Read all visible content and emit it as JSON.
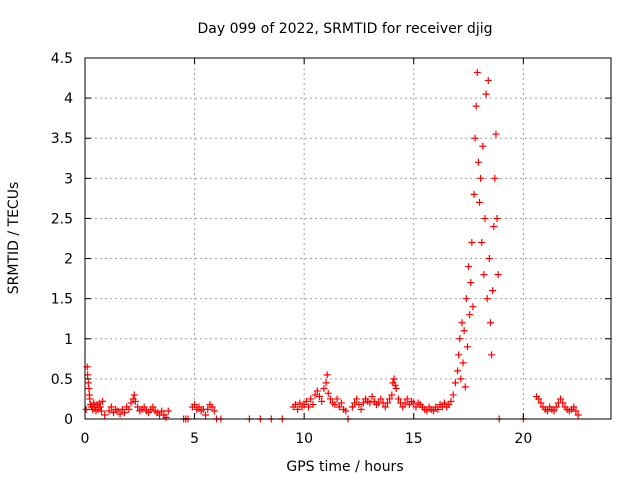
{
  "chart_data": {
    "type": "scatter",
    "title": "Day 099 of 2022, SRMTID for receiver djig",
    "xlabel": "GPS time / hours",
    "ylabel": "SRMTID / TECUs",
    "xlim": [
      0,
      24
    ],
    "ylim": [
      0,
      4.5
    ],
    "x_ticks": [
      0,
      5,
      10,
      15,
      20
    ],
    "x_tick_labels": [
      "0",
      "5",
      "10",
      "15",
      "20"
    ],
    "y_ticks": [
      0,
      0.5,
      1,
      1.5,
      2,
      2.5,
      3,
      3.5,
      4,
      4.5
    ],
    "y_tick_labels": [
      "0",
      "0.5",
      "1",
      "1.5",
      "2",
      "2.5",
      "3",
      "3.5",
      "4",
      "4.5"
    ],
    "grid": true,
    "marker": "+",
    "series": [
      {
        "name": "SRMTID",
        "color": "#ff0000",
        "points": [
          [
            0.05,
            0.12
          ],
          [
            0.1,
            0.65
          ],
          [
            0.12,
            0.55
          ],
          [
            0.15,
            0.45
          ],
          [
            0.18,
            0.38
          ],
          [
            0.2,
            0.3
          ],
          [
            0.22,
            0.25
          ],
          [
            0.25,
            0.18
          ],
          [
            0.3,
            0.15
          ],
          [
            0.35,
            0.12
          ],
          [
            0.4,
            0.2
          ],
          [
            0.45,
            0.15
          ],
          [
            0.5,
            0.1
          ],
          [
            0.55,
            0.18
          ],
          [
            0.6,
            0.12
          ],
          [
            0.65,
            0.2
          ],
          [
            0.7,
            0.15
          ],
          [
            0.75,
            0.1
          ],
          [
            0.8,
            0.22
          ],
          [
            0.9,
            0.05
          ],
          [
            1.1,
            0.1
          ],
          [
            1.2,
            0.15
          ],
          [
            1.3,
            0.08
          ],
          [
            1.4,
            0.12
          ],
          [
            1.5,
            0.1
          ],
          [
            1.6,
            0.06
          ],
          [
            1.7,
            0.12
          ],
          [
            1.8,
            0.08
          ],
          [
            1.9,
            0.15
          ],
          [
            2.0,
            0.12
          ],
          [
            2.1,
            0.2
          ],
          [
            2.2,
            0.25
          ],
          [
            2.25,
            0.3
          ],
          [
            2.3,
            0.22
          ],
          [
            2.4,
            0.15
          ],
          [
            2.5,
            0.1
          ],
          [
            2.6,
            0.12
          ],
          [
            2.7,
            0.15
          ],
          [
            2.8,
            0.1
          ],
          [
            2.9,
            0.08
          ],
          [
            3.0,
            0.12
          ],
          [
            3.1,
            0.15
          ],
          [
            3.2,
            0.1
          ],
          [
            3.3,
            0.08
          ],
          [
            3.4,
            0.05
          ],
          [
            3.5,
            0.1
          ],
          [
            3.6,
            0.05
          ],
          [
            3.7,
            0.02
          ],
          [
            3.8,
            0.1
          ],
          [
            4.5,
            0
          ],
          [
            4.6,
            0
          ],
          [
            4.7,
            0
          ],
          [
            4.9,
            0.15
          ],
          [
            5.0,
            0.18
          ],
          [
            5.1,
            0.12
          ],
          [
            5.2,
            0.15
          ],
          [
            5.3,
            0.1
          ],
          [
            5.4,
            0.12
          ],
          [
            5.5,
            0.05
          ],
          [
            5.6,
            0.12
          ],
          [
            5.7,
            0.18
          ],
          [
            5.8,
            0.15
          ],
          [
            5.9,
            0.1
          ],
          [
            6.0,
            0
          ],
          [
            6.2,
            0
          ],
          [
            7.5,
            0
          ],
          [
            8.0,
            0
          ],
          [
            8.5,
            0
          ],
          [
            9.0,
            0
          ],
          [
            9.5,
            0.15
          ],
          [
            9.6,
            0.18
          ],
          [
            9.7,
            0.12
          ],
          [
            9.8,
            0.2
          ],
          [
            9.9,
            0.15
          ],
          [
            10.0,
            0.18
          ],
          [
            10.1,
            0.22
          ],
          [
            10.2,
            0.15
          ],
          [
            10.3,
            0.25
          ],
          [
            10.4,
            0.18
          ],
          [
            10.5,
            0.3
          ],
          [
            10.6,
            0.35
          ],
          [
            10.7,
            0.28
          ],
          [
            10.8,
            0.22
          ],
          [
            10.9,
            0.38
          ],
          [
            11.0,
            0.45
          ],
          [
            11.05,
            0.55
          ],
          [
            11.1,
            0.32
          ],
          [
            11.2,
            0.25
          ],
          [
            11.3,
            0.2
          ],
          [
            11.4,
            0.18
          ],
          [
            11.5,
            0.25
          ],
          [
            11.6,
            0.15
          ],
          [
            11.7,
            0.2
          ],
          [
            11.8,
            0.12
          ],
          [
            11.9,
            0.1
          ],
          [
            12.0,
            0
          ],
          [
            12.2,
            0.15
          ],
          [
            12.3,
            0.2
          ],
          [
            12.4,
            0.25
          ],
          [
            12.5,
            0.18
          ],
          [
            12.6,
            0.12
          ],
          [
            12.7,
            0.2
          ],
          [
            12.8,
            0.25
          ],
          [
            12.9,
            0.22
          ],
          [
            13.0,
            0.2
          ],
          [
            13.1,
            0.28
          ],
          [
            13.2,
            0.22
          ],
          [
            13.3,
            0.18
          ],
          [
            13.4,
            0.2
          ],
          [
            13.5,
            0.25
          ],
          [
            13.6,
            0.2
          ],
          [
            13.7,
            0.15
          ],
          [
            13.8,
            0.2
          ],
          [
            13.9,
            0.25
          ],
          [
            14.0,
            0.3
          ],
          [
            14.05,
            0.45
          ],
          [
            14.1,
            0.5
          ],
          [
            14.15,
            0.42
          ],
          [
            14.2,
            0.38
          ],
          [
            14.3,
            0.25
          ],
          [
            14.4,
            0.2
          ],
          [
            14.5,
            0.15
          ],
          [
            14.6,
            0.2
          ],
          [
            14.7,
            0.25
          ],
          [
            14.8,
            0.18
          ],
          [
            14.9,
            0.22
          ],
          [
            15.0,
            0.2
          ],
          [
            15.1,
            0.15
          ],
          [
            15.2,
            0.2
          ],
          [
            15.3,
            0.18
          ],
          [
            15.4,
            0.15
          ],
          [
            15.5,
            0.12
          ],
          [
            15.6,
            0.1
          ],
          [
            15.7,
            0.15
          ],
          [
            15.8,
            0.12
          ],
          [
            15.9,
            0.1
          ],
          [
            16.0,
            0.15
          ],
          [
            16.1,
            0.12
          ],
          [
            16.2,
            0.18
          ],
          [
            16.3,
            0.15
          ],
          [
            16.4,
            0.2
          ],
          [
            16.5,
            0.15
          ],
          [
            16.6,
            0.18
          ],
          [
            16.7,
            0.22
          ],
          [
            16.8,
            0.3
          ],
          [
            16.9,
            0.45
          ],
          [
            17.0,
            0.6
          ],
          [
            17.05,
            0.8
          ],
          [
            17.1,
            1.0
          ],
          [
            17.15,
            0.5
          ],
          [
            17.2,
            1.2
          ],
          [
            17.25,
            0.7
          ],
          [
            17.3,
            1.1
          ],
          [
            17.35,
            0.4
          ],
          [
            17.4,
            1.5
          ],
          [
            17.45,
            0.9
          ],
          [
            17.5,
            1.9
          ],
          [
            17.55,
            1.3
          ],
          [
            17.6,
            1.7
          ],
          [
            17.65,
            2.2
          ],
          [
            17.7,
            1.4
          ],
          [
            17.75,
            2.8
          ],
          [
            17.8,
            3.5
          ],
          [
            17.85,
            3.9
          ],
          [
            17.9,
            4.32
          ],
          [
            17.95,
            3.2
          ],
          [
            18.0,
            2.7
          ],
          [
            18.05,
            3.0
          ],
          [
            18.1,
            2.2
          ],
          [
            18.15,
            3.4
          ],
          [
            18.2,
            1.8
          ],
          [
            18.25,
            2.5
          ],
          [
            18.3,
            4.05
          ],
          [
            18.35,
            1.5
          ],
          [
            18.4,
            4.22
          ],
          [
            18.45,
            2.0
          ],
          [
            18.5,
            1.2
          ],
          [
            18.55,
            0.8
          ],
          [
            18.6,
            1.6
          ],
          [
            18.65,
            2.4
          ],
          [
            18.7,
            3.0
          ],
          [
            18.75,
            3.55
          ],
          [
            18.8,
            2.5
          ],
          [
            18.85,
            1.8
          ],
          [
            18.9,
            0
          ],
          [
            20.0,
            0
          ],
          [
            20.6,
            0.28
          ],
          [
            20.7,
            0.25
          ],
          [
            20.8,
            0.2
          ],
          [
            20.9,
            0.15
          ],
          [
            21.0,
            0.12
          ],
          [
            21.1,
            0.1
          ],
          [
            21.2,
            0.15
          ],
          [
            21.3,
            0.12
          ],
          [
            21.4,
            0.1
          ],
          [
            21.5,
            0.15
          ],
          [
            21.6,
            0.2
          ],
          [
            21.7,
            0.25
          ],
          [
            21.8,
            0.2
          ],
          [
            21.9,
            0.15
          ],
          [
            22.0,
            0.12
          ],
          [
            22.1,
            0.1
          ],
          [
            22.2,
            0.12
          ],
          [
            22.3,
            0.15
          ],
          [
            22.4,
            0.1
          ],
          [
            22.5,
            0.05
          ]
        ]
      }
    ]
  }
}
